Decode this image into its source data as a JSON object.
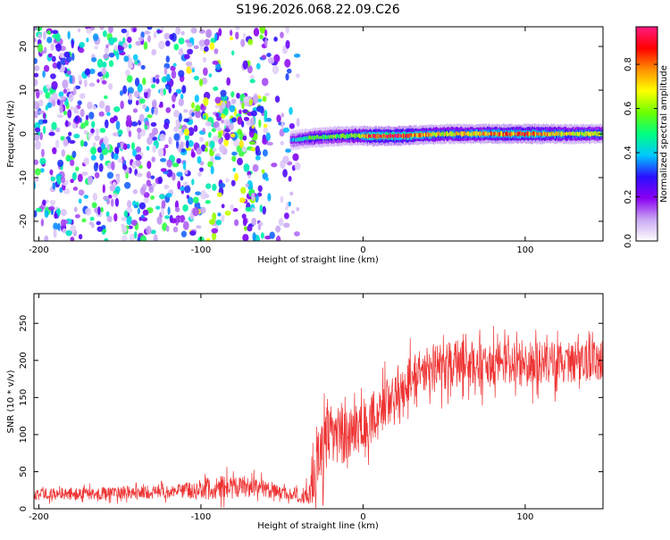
{
  "chart_data": [
    {
      "type": "heatmap",
      "title": "S196.2026.068.22.09.C26",
      "xlabel": "Height of straight line (km)",
      "ylabel": "Frequency (Hz)",
      "xlim": [
        -203,
        148
      ],
      "ylim": [
        -24.5,
        24.5
      ],
      "xticks": [
        -200,
        -100,
        0,
        100
      ],
      "yticks": [
        -20,
        -10,
        0,
        10,
        20
      ],
      "colorbar": {
        "label": "Normalized spectral amplitude",
        "range": [
          0,
          0.97
        ],
        "ticks": [
          "0.0",
          "0.2",
          "0.4",
          "0.6",
          "0.8"
        ],
        "tick_values": [
          0.0,
          0.2,
          0.4,
          0.6,
          0.8
        ],
        "colors": [
          "#ffffff",
          "#c9a8f3",
          "#8a00f2",
          "#2a10ff",
          "#00c8ff",
          "#00ff80",
          "#6cff00",
          "#ffff00",
          "#ff9000",
          "#ff0000",
          "#ff1a80"
        ]
      },
      "ridge": [
        {
          "x": -45,
          "y": -1.5,
          "amp": 0.35
        },
        {
          "x": -35,
          "y": -1.0,
          "amp": 0.5
        },
        {
          "x": -20,
          "y": -0.6,
          "amp": 0.55
        },
        {
          "x": -5,
          "y": -0.4,
          "amp": 0.6
        },
        {
          "x": 5,
          "y": -0.5,
          "amp": 0.85
        },
        {
          "x": 20,
          "y": -0.5,
          "amp": 0.9
        },
        {
          "x": 50,
          "y": 0.0,
          "amp": 0.65
        },
        {
          "x": 80,
          "y": 0.0,
          "amp": 0.75
        },
        {
          "x": 100,
          "y": 0.0,
          "amp": 0.8
        },
        {
          "x": 120,
          "y": 0.0,
          "amp": 0.7
        },
        {
          "x": 148,
          "y": 0.0,
          "amp": 0.6
        }
      ],
      "noise_regions": [
        {
          "x_from": -203,
          "x_to": -110,
          "density": "high",
          "amp": 0.5
        },
        {
          "x_from": -110,
          "x_to": -60,
          "density": "high",
          "amp": 0.65
        },
        {
          "x_from": -60,
          "x_to": -40,
          "density": "low",
          "amp": 0.35
        }
      ]
    },
    {
      "type": "line",
      "title": "",
      "xlabel": "Height of straight line (km)",
      "ylabel": "SNR (10 * v/v)",
      "xlim": [
        -203,
        148
      ],
      "ylim": [
        0,
        290
      ],
      "xticks": [
        -200,
        -100,
        0,
        100
      ],
      "yticks": [
        0,
        50,
        100,
        150,
        200,
        250
      ],
      "series": [
        {
          "name": "SNR",
          "color": "#ee3333",
          "envelope": [
            {
              "x": -203,
              "base": 20,
              "spread": 14
            },
            {
              "x": -120,
              "base": 22,
              "spread": 16
            },
            {
              "x": -90,
              "base": 28,
              "spread": 30
            },
            {
              "x": -70,
              "base": 30,
              "spread": 26
            },
            {
              "x": -45,
              "base": 20,
              "spread": 14
            },
            {
              "x": -33,
              "base": 18,
              "spread": 25
            },
            {
              "x": -28,
              "base": 75,
              "spread": 100
            },
            {
              "x": -20,
              "base": 95,
              "spread": 70
            },
            {
              "x": -10,
              "base": 100,
              "spread": 70
            },
            {
              "x": 0,
              "base": 110,
              "spread": 60
            },
            {
              "x": 10,
              "base": 130,
              "spread": 65
            },
            {
              "x": 20,
              "base": 160,
              "spread": 60
            },
            {
              "x": 35,
              "base": 185,
              "spread": 55
            },
            {
              "x": 60,
              "base": 195,
              "spread": 60
            },
            {
              "x": 100,
              "base": 195,
              "spread": 55
            },
            {
              "x": 148,
              "base": 200,
              "spread": 50
            }
          ]
        }
      ]
    }
  ]
}
